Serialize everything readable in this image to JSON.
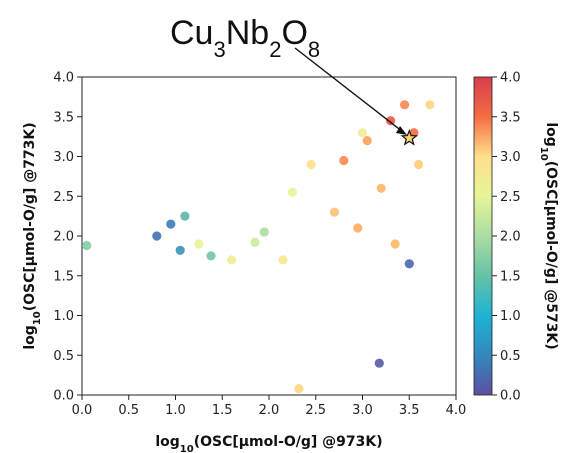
{
  "chart_data": {
    "type": "scatter",
    "title": "",
    "annotation": {
      "label_main": "Cu",
      "label_parts": [
        "Cu",
        "3",
        "Nb",
        "2",
        "O",
        "8"
      ],
      "label_text": "Cu3Nb2O8",
      "x": 3.5,
      "y": 3.23,
      "marker": "star"
    },
    "xlabel": {
      "pre": "log",
      "sub": "10",
      "post": "(OSC[μmol-O/g] @973K)"
    },
    "ylabel": {
      "pre": "log",
      "sub": "10",
      "post": "(OSC[μmol-O/g] @773K)"
    },
    "colorbar_label": {
      "pre": "log",
      "sub": "10",
      "post": "(OSC[μmol-O/g] @573K)"
    },
    "xlim": [
      0.0,
      4.0
    ],
    "ylim": [
      0.0,
      4.0
    ],
    "clim": [
      0.0,
      4.0
    ],
    "xticks": [
      "0.0",
      "0.5",
      "1.0",
      "1.5",
      "2.0",
      "2.5",
      "3.0",
      "3.5",
      "4.0"
    ],
    "yticks": [
      "0.0",
      "0.5",
      "1.0",
      "1.5",
      "2.0",
      "2.5",
      "3.0",
      "3.5",
      "4.0"
    ],
    "cticks": [
      "0.0",
      "0.5",
      "1.0",
      "1.5",
      "2.0",
      "2.5",
      "3.0",
      "3.5",
      "4.0"
    ],
    "colormap": [
      "#5e4fa2",
      "#3288bd",
      "#66c2a5",
      "#abdda4",
      "#e6f598",
      "#fee08b",
      "#fdae61",
      "#f46d43",
      "#d53e4f"
    ],
    "series": [
      {
        "marker": "circle",
        "points": [
          [
            0.05,
            1.88,
            1.2
          ],
          [
            0.8,
            2.0,
            0.3
          ],
          [
            1.05,
            1.82,
            0.6
          ],
          [
            1.25,
            1.9,
            2.0
          ],
          [
            1.38,
            1.75,
            1.1
          ],
          [
            1.6,
            1.7,
            2.2
          ],
          [
            1.85,
            1.92,
            1.8
          ],
          [
            2.15,
            1.7,
            2.4
          ],
          [
            2.32,
            0.08,
            2.6
          ],
          [
            3.18,
            0.4,
            0.1
          ],
          [
            3.5,
            1.65,
            0.2
          ],
          [
            3.45,
            3.65,
            3.3
          ],
          [
            3.72,
            3.65,
            2.6
          ],
          [
            3.55,
            3.3,
            3.5
          ],
          [
            3.3,
            3.45,
            3.7
          ],
          [
            2.7,
            2.3,
            2.8
          ],
          [
            2.95,
            2.1,
            3.0
          ],
          [
            3.2,
            2.6,
            2.9
          ],
          [
            3.05,
            3.2,
            3.1
          ],
          [
            2.45,
            2.9,
            2.5
          ],
          [
            3.6,
            2.9,
            2.7
          ],
          [
            2.25,
            2.55,
            2.0
          ],
          [
            3.35,
            1.9,
            2.9
          ],
          [
            2.8,
            2.95,
            3.3
          ],
          [
            3.0,
            3.3,
            2.2
          ],
          [
            1.95,
            2.05,
            1.5
          ],
          [
            0.95,
            2.15,
            0.4
          ],
          [
            1.1,
            2.25,
            0.9
          ]
        ]
      }
    ]
  }
}
